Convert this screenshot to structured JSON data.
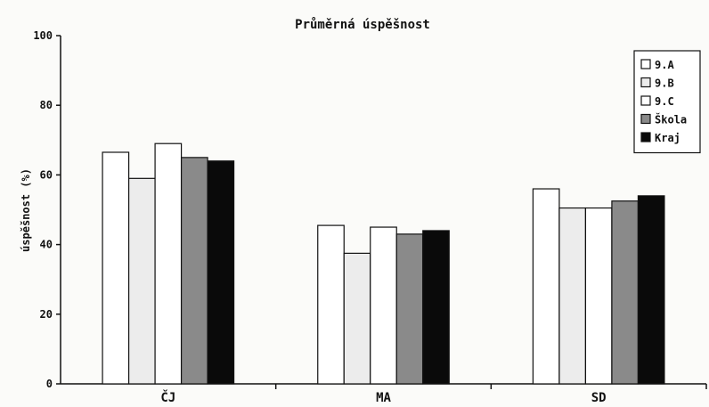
{
  "chart_data": {
    "type": "bar",
    "title": "Průměrná úspěšnost",
    "xlabel": "",
    "ylabel": "úspěšnost (%)",
    "ylim": [
      0,
      100
    ],
    "yticks": [
      "0",
      "20",
      "40",
      "60",
      "80",
      "100"
    ],
    "categories": [
      "ČJ",
      "MA",
      "SD"
    ],
    "series": [
      {
        "name": "9.A",
        "color": "#ffffff",
        "values": [
          66.5,
          45.5,
          56
        ]
      },
      {
        "name": "9.B",
        "color": "#ececec",
        "values": [
          59,
          37.5,
          50.5
        ]
      },
      {
        "name": "9.C",
        "color": "#ffffff",
        "values": [
          69,
          45,
          50.5
        ]
      },
      {
        "name": "Škola",
        "color": "#8a8a8a",
        "values": [
          65,
          43,
          52.5
        ]
      },
      {
        "name": "Kraj",
        "color": "#0a0a0a",
        "values": [
          64,
          44,
          54
        ]
      }
    ],
    "grid": false,
    "legend": "top-right"
  }
}
